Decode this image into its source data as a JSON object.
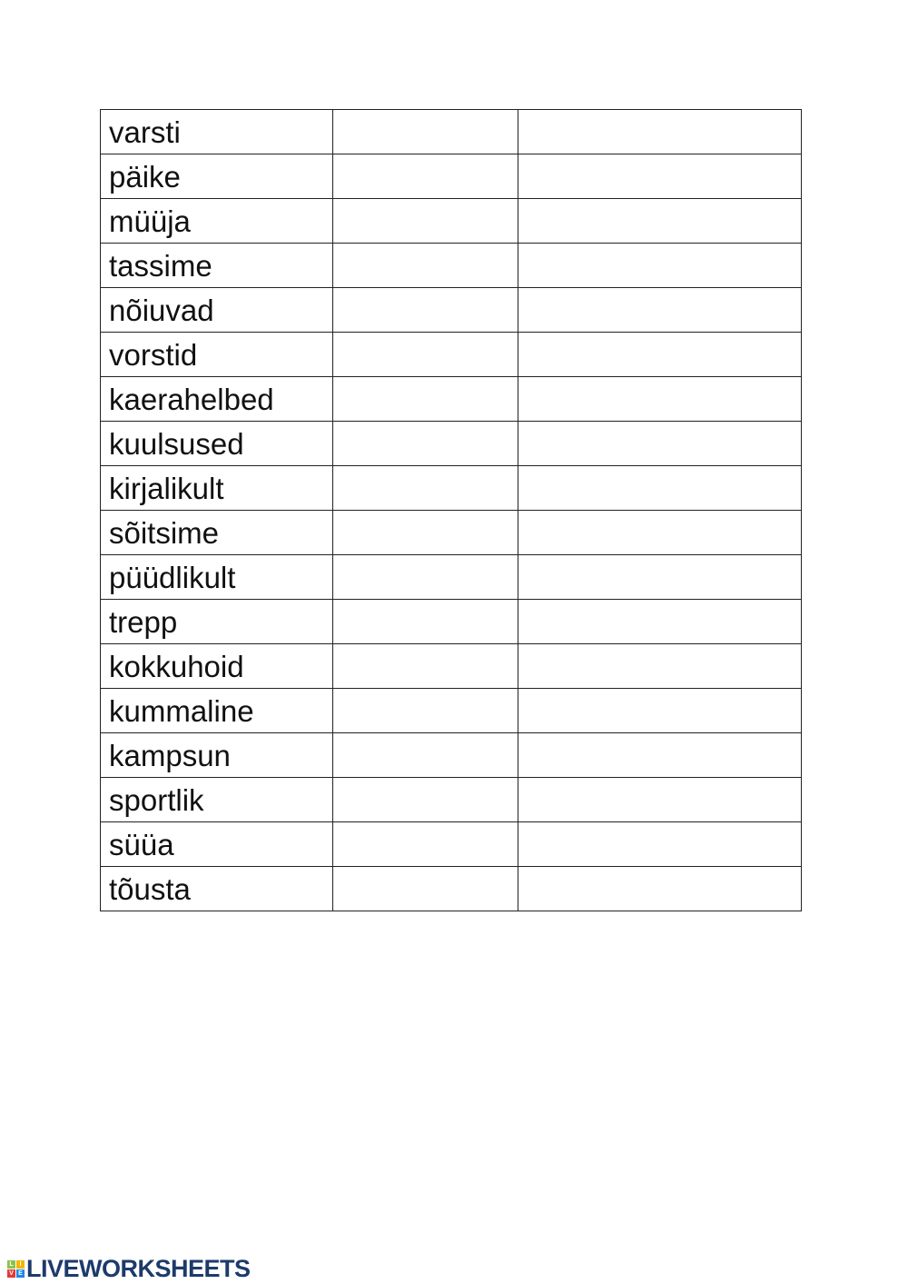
{
  "words": [
    "varsti",
    "päike",
    "müüja",
    "tassime",
    "nõiuvad",
    "vorstid",
    "kaerahelbed",
    "kuulsused",
    "kirjalikult",
    "sõitsime",
    "püüdlikult",
    "trepp",
    "kokkuhoid",
    "kummaline",
    "kampsun",
    "sportlik",
    "süüa",
    "tõusta"
  ],
  "logo": {
    "text": "LIVEWORKSHEETS",
    "letters": [
      "L",
      "I",
      "V",
      "E"
    ],
    "colors": [
      "#8bc34a",
      "#f4b400",
      "#e53935",
      "#1e88e5"
    ],
    "text_color": "#1d3a6b"
  }
}
